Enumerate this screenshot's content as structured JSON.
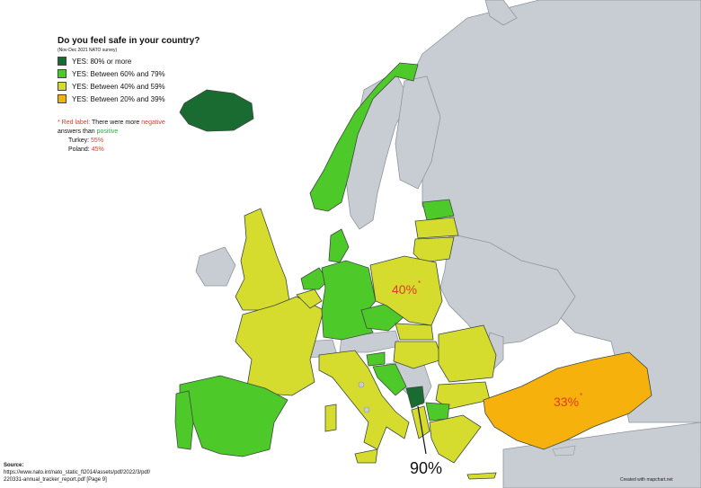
{
  "title": "Do you feel safe in your country?",
  "subtitle": "(Nov-Dec 2021 NATO survey)",
  "legend": [
    {
      "label": "YES: 80% or more",
      "color": "#196b31"
    },
    {
      "label": "YES: Between 60% and 79%",
      "color": "#4dc92a"
    },
    {
      "label": "YES: Between 40% and 59%",
      "color": "#d5dc2e"
    },
    {
      "label": "YES: Between 20% and 39%",
      "color": "#f6b10c"
    }
  ],
  "note": {
    "star_label": "* Red label:",
    "text1": "There were more",
    "negative": "negative",
    "text2": "answers than",
    "positive": "positive",
    "turkey_label": "Turkey:",
    "turkey_value": "55%",
    "poland_label": "Poland:",
    "poland_value": "45%"
  },
  "map_labels": {
    "poland": "40%",
    "turkey": "33%",
    "montenegro": "90%",
    "star": "*"
  },
  "source": {
    "label": "Source:",
    "line1": "https://www.nato.int/nato_static_fl2014/assets/pdf/2022/3/pdf/",
    "line2": "220331-annual_tracker_report.pdf [Page 9]"
  },
  "credit": "Created with mapchart.net",
  "colors": {
    "dark_green": "#196b31",
    "green": "#4dc92a",
    "yellow": "#d5dc2e",
    "orange": "#f6b10c",
    "grey": "#c8cdd3",
    "white": "#ffffff",
    "red_label": "#e03a2a"
  },
  "regions": {
    "iceland": "YES: 80% or more",
    "montenegro": "YES: 80% or more",
    "norway": "YES: Between 60% and 79%",
    "denmark": "YES: Between 60% and 79%",
    "netherlands": "YES: Between 60% and 79%",
    "germany": "YES: Between 60% and 79%",
    "czechia": "YES: Between 60% and 79%",
    "portugal": "YES: Between 60% and 79%",
    "spain": "YES: Between 60% and 79%",
    "slovenia": "YES: Between 60% and 79%",
    "croatia": "YES: Between 60% and 79%",
    "north-macedonia": "YES: Between 60% and 79%",
    "estonia": "YES: Between 60% and 79%",
    "united-kingdom": "YES: Between 40% and 59%",
    "france": "YES: Between 40% and 59%",
    "belgium": "YES: Between 40% and 59%",
    "luxembourg": "YES: Between 40% and 59%",
    "italy": "YES: Between 40% and 59%",
    "poland": "YES: Between 40% and 59%",
    "latvia": "YES: Between 40% and 59%",
    "lithuania": "YES: Between 40% and 59%",
    "slovakia": "YES: Between 40% and 59%",
    "hungary": "YES: Between 40% and 59%",
    "romania": "YES: Between 40% and 59%",
    "bulgaria": "YES: Between 40% and 59%",
    "albania": "YES: Between 40% and 59%",
    "greece": "YES: Between 40% and 59%",
    "turkey": "YES: Between 20% and 39%"
  }
}
